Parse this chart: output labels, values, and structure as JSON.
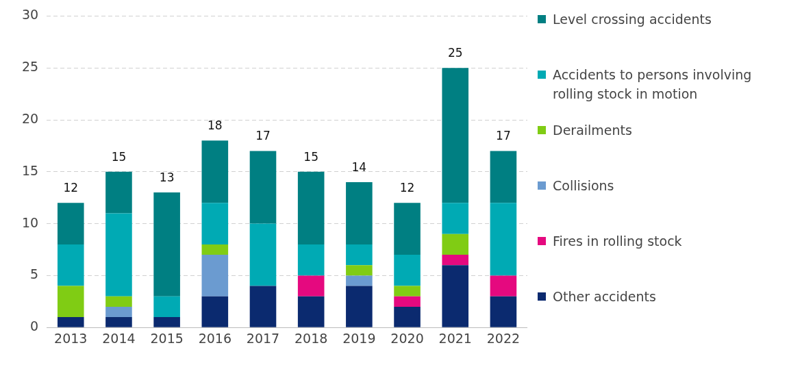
{
  "chart_data": {
    "type": "bar",
    "stacked": true,
    "categories": [
      "2013",
      "2014",
      "2015",
      "2016",
      "2017",
      "2018",
      "2019",
      "2020",
      "2021",
      "2022"
    ],
    "series": [
      {
        "name": "Other accidents",
        "color": "#0b2a6f",
        "values": [
          1,
          1,
          1,
          3,
          4,
          3,
          4,
          2,
          6,
          3
        ]
      },
      {
        "name": "Fires in rolling stock",
        "color": "#e5097f",
        "values": [
          0,
          0,
          0,
          0,
          0,
          2,
          0,
          1,
          1,
          2
        ]
      },
      {
        "name": "Collisions",
        "color": "#6b9bd0",
        "values": [
          0,
          1,
          0,
          4,
          0,
          0,
          1,
          0,
          0,
          0
        ]
      },
      {
        "name": "Derailments",
        "color": "#80cc14",
        "values": [
          3,
          1,
          0,
          1,
          0,
          0,
          1,
          1,
          2,
          0
        ]
      },
      {
        "name": "Accidents to persons involving rolling stock in motion",
        "color": "#00aab4",
        "values": [
          4,
          8,
          2,
          4,
          6,
          3,
          2,
          3,
          3,
          7
        ]
      },
      {
        "name": "Level crossing accidents",
        "color": "#007f82",
        "values": [
          4,
          4,
          10,
          6,
          7,
          7,
          6,
          5,
          13,
          5
        ]
      }
    ],
    "totals": [
      "12",
      "15",
      "13",
      "18",
      "17",
      "15",
      "14",
      "12",
      "25",
      "17"
    ],
    "ylim": [
      0,
      30
    ],
    "yticks": [
      0,
      5,
      10,
      15,
      20,
      25,
      30
    ],
    "grid": "y",
    "legend": "right"
  }
}
